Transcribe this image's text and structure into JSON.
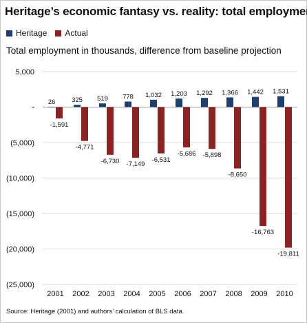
{
  "chart_data": {
    "type": "bar",
    "title": "Heritage’s economic fantasy vs. reality: total employment",
    "subtitle": "Total employment in thousands, difference from baseline projection",
    "source": "Source: Heritage (2001) and authors’ calculation of BLS data.",
    "categories": [
      "2001",
      "2002",
      "2003",
      "2004",
      "2005",
      "2006",
      "2007",
      "2008",
      "2009",
      "2010"
    ],
    "series": [
      {
        "name": "Heritage",
        "color": "#1f3f6e",
        "values": [
          26,
          325,
          519,
          778,
          1032,
          1203,
          1292,
          1366,
          1442,
          1531
        ],
        "labels": [
          "26",
          "325",
          "519",
          "778",
          "1,032",
          "1,203",
          "1,292",
          "1,366",
          "1,442",
          "1,531"
        ]
      },
      {
        "name": "Actual",
        "color": "#8b2323",
        "values": [
          -1591,
          -4771,
          -6730,
          -7149,
          -6531,
          -5686,
          -5898,
          -8650,
          -16763,
          -19811
        ],
        "labels": [
          "-1,591",
          "-4,771",
          "-6,730",
          "-7,149",
          "-6,531",
          "-5,686",
          "-5,898",
          "-8,650",
          "-16,763",
          "-19,811"
        ]
      }
    ],
    "ylim": [
      -25000,
      5000
    ],
    "yticks": [
      5000,
      0,
      -5000,
      -10000,
      -15000,
      -20000,
      -25000
    ],
    "ytick_labels": [
      "5,000",
      "-",
      "(5,000)",
      "(10,000)",
      "(15,000)",
      "(20,000)",
      "(25,000)"
    ],
    "grid": true,
    "legend": "top-left"
  }
}
